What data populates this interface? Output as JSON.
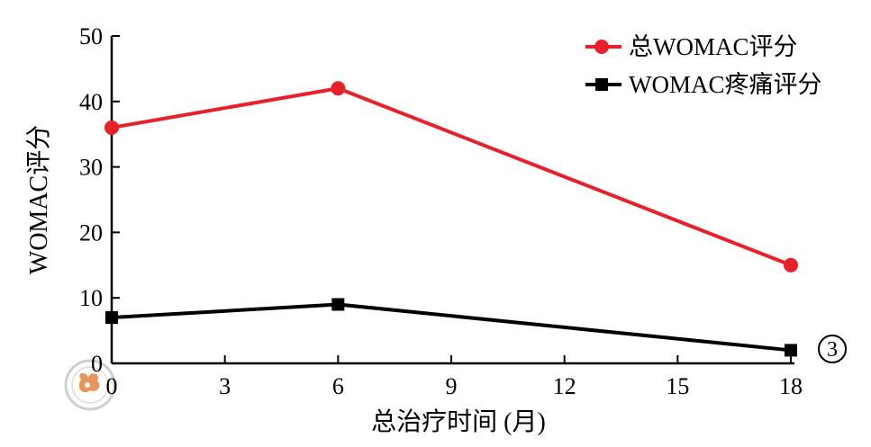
{
  "chart_data": {
    "type": "line",
    "xlabel": "总治疗时间 (月)",
    "ylabel": "WOMAC评分",
    "x": [
      0,
      6,
      18
    ],
    "xlim": [
      0,
      18
    ],
    "ylim": [
      0,
      50
    ],
    "xticks": [
      0,
      3,
      6,
      9,
      12,
      15,
      18
    ],
    "yticks": [
      0,
      10,
      20,
      30,
      40,
      50
    ],
    "grid": false,
    "legend_position": "top-right",
    "series": [
      {
        "name": "总WOMAC评分",
        "values": [
          36,
          42,
          15
        ],
        "color": "#e8202a",
        "marker": "circle"
      },
      {
        "name": "WOMAC疼痛评分",
        "values": [
          7,
          9,
          2
        ],
        "color": "#000000",
        "marker": "square"
      }
    ],
    "panel_label": "3"
  },
  "watermark": {
    "icon": "medical-association-seal-icon",
    "color": "#e8884a"
  }
}
